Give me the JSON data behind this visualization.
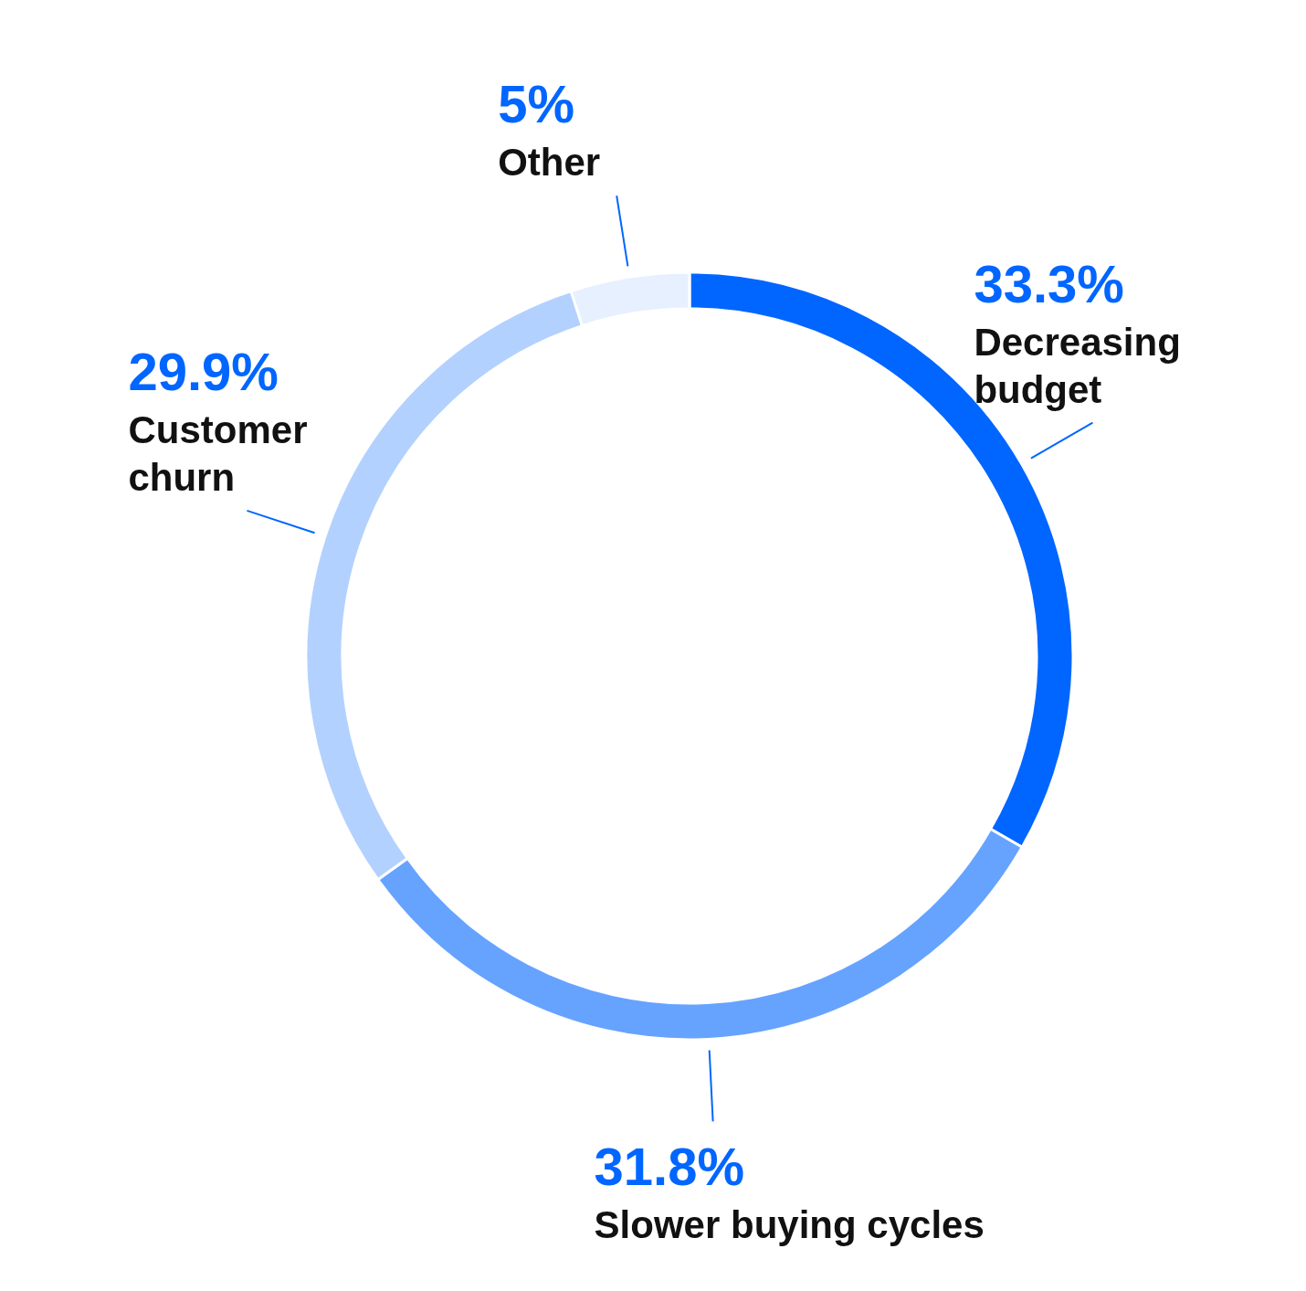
{
  "chart_data": {
    "type": "donut",
    "categories": [
      "Decreasing budget",
      "Slower buying cycles",
      "Customer churn",
      "Other"
    ],
    "values": [
      33.3,
      31.8,
      29.9,
      5
    ],
    "value_labels": [
      "33.3%",
      "31.8%",
      "29.9%",
      "5%"
    ],
    "colors": [
      "#0066ff",
      "#66a3ff",
      "#b3d1ff",
      "#e6f0ff"
    ],
    "legend": false
  }
}
